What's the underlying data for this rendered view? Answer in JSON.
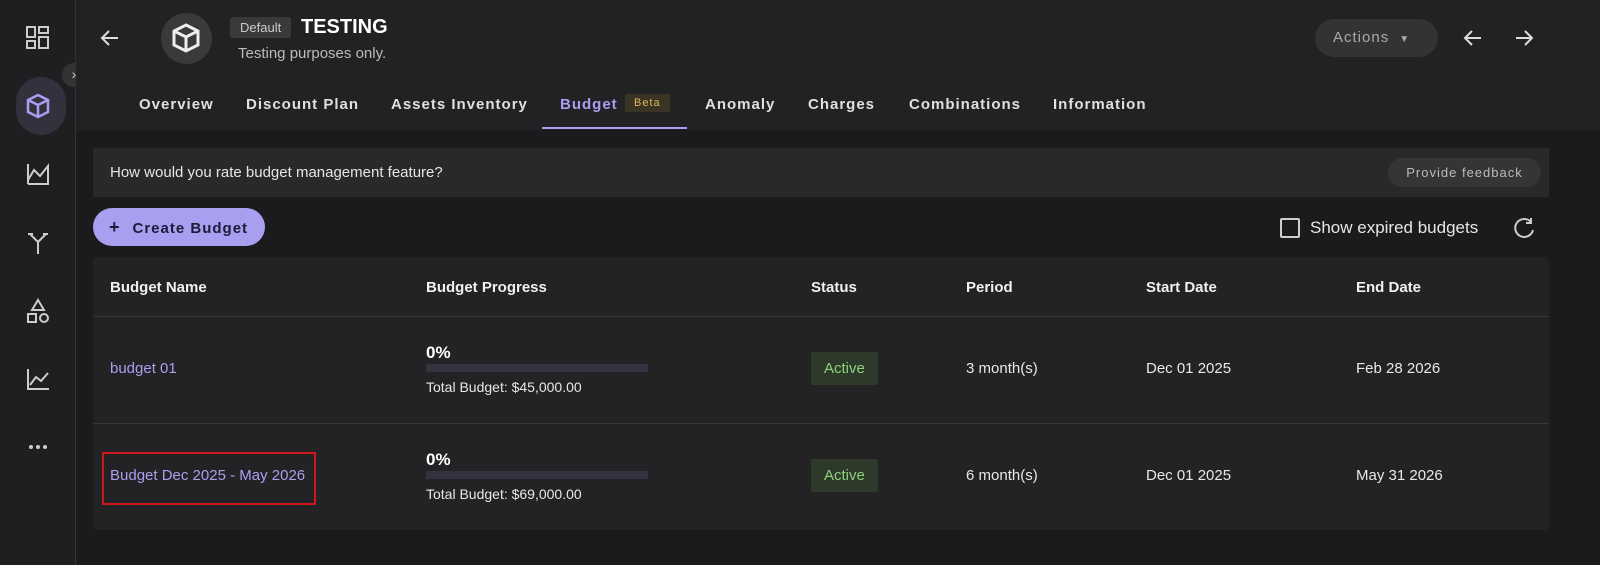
{
  "header": {
    "badge": "Default",
    "title": "TESTING",
    "subtitle": "Testing purposes only.",
    "actions": "Actions"
  },
  "tabs": [
    "Overview",
    "Discount Plan",
    "Assets Inventory",
    "Budget",
    "Anomaly",
    "Charges",
    "Combinations",
    "Information"
  ],
  "tab_badge": "Beta",
  "feedback": {
    "question": "How would you rate budget management feature?",
    "button": "Provide feedback"
  },
  "toolbar": {
    "create": "Create Budget",
    "show_expired": "Show expired budgets"
  },
  "table": {
    "columns": [
      "Budget Name",
      "Budget Progress",
      "Status",
      "Period",
      "Start Date",
      "End Date"
    ],
    "rows": [
      {
        "name": "budget 01",
        "progress": "0%",
        "total": "Total Budget: $45,000.00",
        "status": "Active",
        "period": "3 month(s)",
        "start": "Dec 01 2025",
        "end": "Feb 28 2026"
      },
      {
        "name": "Budget Dec 2025 - May 2026",
        "progress": "0%",
        "total": "Total Budget: $69,000.00",
        "status": "Active",
        "period": "6 month(s)",
        "start": "Dec 01 2025",
        "end": "May 31 2026"
      }
    ]
  }
}
